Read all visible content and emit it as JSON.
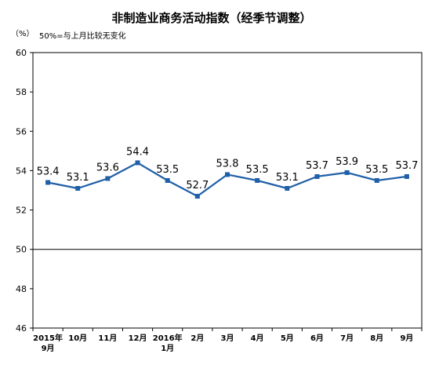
{
  "chart_data": {
    "type": "line",
    "title": "非制造业商务活动指数（经季节调整）",
    "unit_label": "（%）",
    "reference_note": "50%=与上月比较无变化",
    "ylim": [
      46,
      60
    ],
    "yticks": [
      "46",
      "48",
      "50",
      "52",
      "54",
      "56",
      "58",
      "60"
    ],
    "reference_line": 50,
    "grid": false,
    "categories": [
      [
        "2015年",
        "9月"
      ],
      [
        "10月"
      ],
      [
        "11月"
      ],
      [
        "12月"
      ],
      [
        "2016年",
        "1月"
      ],
      [
        "2月"
      ],
      [
        "3月"
      ],
      [
        "4月"
      ],
      [
        "5月"
      ],
      [
        "6月"
      ],
      [
        "7月"
      ],
      [
        "8月"
      ],
      [
        "9月"
      ]
    ],
    "series": [
      {
        "values": [
          53.4,
          53.1,
          53.6,
          54.4,
          53.5,
          52.7,
          53.8,
          53.5,
          53.1,
          53.7,
          53.9,
          53.5,
          53.7
        ],
        "labels": [
          "53.4",
          "53.1",
          "53.6",
          "54.4",
          "53.5",
          "52.7",
          "53.8",
          "53.5",
          "53.1",
          "53.7",
          "53.9",
          "53.5",
          "53.7"
        ],
        "color": "#1f5fa8"
      }
    ]
  }
}
